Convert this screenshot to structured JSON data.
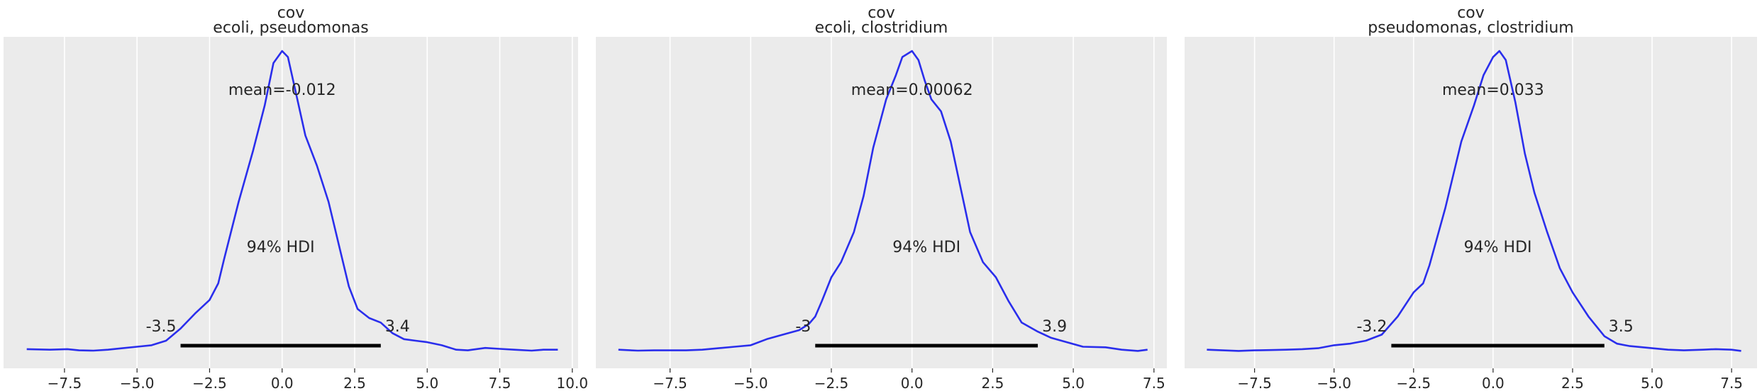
{
  "chart_data": [
    {
      "type": "kde",
      "title_line1": "cov",
      "title_line2": "ecoli, pseudomonas",
      "mean_label": "mean=-0.012",
      "hdi_label": "94% HDI",
      "hdi_low": -3.5,
      "hdi_high": 3.4,
      "hdi_low_label": "-3.5",
      "hdi_high_label": "3.4",
      "xlim": [
        -9.6,
        10.2
      ],
      "ylim": [
        0,
        1
      ],
      "xticks": [
        -7.5,
        -5.0,
        -2.5,
        0.0,
        2.5,
        5.0,
        7.5,
        10.0
      ],
      "xtick_labels": [
        "−7.5",
        "−5.0",
        "−2.5",
        "0.0",
        "2.5",
        "5.0",
        "7.5",
        "10.0"
      ],
      "curve": [
        [
          -8.8,
          0.012
        ],
        [
          -8,
          0.01
        ],
        [
          -7.4,
          0.012
        ],
        [
          -7,
          0.008
        ],
        [
          -6.5,
          0.007
        ],
        [
          -6,
          0.01
        ],
        [
          -5.5,
          0.015
        ],
        [
          -5,
          0.02
        ],
        [
          -4.5,
          0.025
        ],
        [
          -4,
          0.04
        ],
        [
          -3.5,
          0.08
        ],
        [
          -3,
          0.13
        ],
        [
          -2.5,
          0.175
        ],
        [
          -2.2,
          0.23
        ],
        [
          -2,
          0.31
        ],
        [
          -1.5,
          0.5
        ],
        [
          -1,
          0.67
        ],
        [
          -0.6,
          0.82
        ],
        [
          -0.3,
          0.96
        ],
        [
          0,
          1.0
        ],
        [
          0.2,
          0.98
        ],
        [
          0.5,
          0.85
        ],
        [
          0.8,
          0.72
        ],
        [
          1.2,
          0.62
        ],
        [
          1.6,
          0.5
        ],
        [
          2,
          0.34
        ],
        [
          2.3,
          0.22
        ],
        [
          2.6,
          0.145
        ],
        [
          3,
          0.115
        ],
        [
          3.4,
          0.1
        ],
        [
          3.8,
          0.065
        ],
        [
          4.2,
          0.045
        ],
        [
          4.6,
          0.04
        ],
        [
          5,
          0.035
        ],
        [
          5.5,
          0.025
        ],
        [
          6,
          0.01
        ],
        [
          6.4,
          0.008
        ],
        [
          7,
          0.016
        ],
        [
          7.5,
          0.013
        ],
        [
          8,
          0.01
        ],
        [
          8.6,
          0.007
        ],
        [
          9,
          0.01
        ],
        [
          9.5,
          0.01
        ]
      ]
    },
    {
      "type": "kde",
      "title_line1": "cov",
      "title_line2": "ecoli, clostridium",
      "mean_label": "mean=0.00062",
      "hdi_label": "94% HDI",
      "hdi_low": -3.0,
      "hdi_high": 3.9,
      "hdi_low_label": "-3",
      "hdi_high_label": "3.9",
      "xlim": [
        -9.8,
        7.9
      ],
      "ylim": [
        0,
        1
      ],
      "xticks": [
        -7.5,
        -5.0,
        -2.5,
        0.0,
        2.5,
        5.0,
        7.5
      ],
      "xtick_labels": [
        "−7.5",
        "−5.0",
        "−2.5",
        "0.0",
        "2.5",
        "5.0",
        "7.5"
      ],
      "curve": [
        [
          -9.1,
          0.01
        ],
        [
          -8.5,
          0.007
        ],
        [
          -8,
          0.008
        ],
        [
          -7.5,
          0.008
        ],
        [
          -7,
          0.008
        ],
        [
          -6.5,
          0.01
        ],
        [
          -6,
          0.015
        ],
        [
          -5.5,
          0.02
        ],
        [
          -5,
          0.025
        ],
        [
          -4.5,
          0.045
        ],
        [
          -4,
          0.06
        ],
        [
          -3.5,
          0.075
        ],
        [
          -3.2,
          0.095
        ],
        [
          -3,
          0.12
        ],
        [
          -2.8,
          0.17
        ],
        [
          -2.5,
          0.25
        ],
        [
          -2.2,
          0.3
        ],
        [
          -1.8,
          0.4
        ],
        [
          -1.5,
          0.52
        ],
        [
          -1.2,
          0.68
        ],
        [
          -0.8,
          0.84
        ],
        [
          -0.5,
          0.92
        ],
        [
          -0.3,
          0.98
        ],
        [
          0,
          1.0
        ],
        [
          0.2,
          0.97
        ],
        [
          0.4,
          0.9
        ],
        [
          0.6,
          0.84
        ],
        [
          0.9,
          0.8
        ],
        [
          1.2,
          0.7
        ],
        [
          1.5,
          0.55
        ],
        [
          1.8,
          0.4
        ],
        [
          2.2,
          0.3
        ],
        [
          2.6,
          0.25
        ],
        [
          3,
          0.17
        ],
        [
          3.4,
          0.1
        ],
        [
          3.9,
          0.07
        ],
        [
          4.3,
          0.05
        ],
        [
          4.8,
          0.035
        ],
        [
          5.3,
          0.02
        ],
        [
          6,
          0.018
        ],
        [
          6.5,
          0.01
        ],
        [
          7,
          0.006
        ],
        [
          7.3,
          0.01
        ]
      ]
    },
    {
      "type": "kde",
      "title_line1": "cov",
      "title_line2": "pseudomonas, clostridium",
      "mean_label": "mean=0.033",
      "hdi_label": "94% HDI",
      "hdi_low": -3.2,
      "hdi_high": 3.5,
      "hdi_low_label": "-3.2",
      "hdi_high_label": "3.5",
      "xlim": [
        -9.7,
        8.3
      ],
      "ylim": [
        0,
        1
      ],
      "xticks": [
        -7.5,
        -5.0,
        -2.5,
        0.0,
        2.5,
        5.0,
        7.5
      ],
      "xtick_labels": [
        "−7.5",
        "−5.0",
        "−2.5",
        "0.0",
        "2.5",
        "5.0",
        "7.5"
      ],
      "curve": [
        [
          -9,
          0.01
        ],
        [
          -8.5,
          0.008
        ],
        [
          -8,
          0.006
        ],
        [
          -7.5,
          0.008
        ],
        [
          -7,
          0.009
        ],
        [
          -6.5,
          0.01
        ],
        [
          -6,
          0.012
        ],
        [
          -5.5,
          0.015
        ],
        [
          -5,
          0.025
        ],
        [
          -4.5,
          0.03
        ],
        [
          -4,
          0.04
        ],
        [
          -3.5,
          0.06
        ],
        [
          -3,
          0.12
        ],
        [
          -2.5,
          0.2
        ],
        [
          -2.2,
          0.23
        ],
        [
          -2,
          0.29
        ],
        [
          -1.5,
          0.48
        ],
        [
          -1,
          0.7
        ],
        [
          -0.6,
          0.82
        ],
        [
          -0.3,
          0.92
        ],
        [
          0,
          0.98
        ],
        [
          0.2,
          1.0
        ],
        [
          0.4,
          0.97
        ],
        [
          0.7,
          0.83
        ],
        [
          1,
          0.66
        ],
        [
          1.3,
          0.53
        ],
        [
          1.7,
          0.4
        ],
        [
          2.1,
          0.28
        ],
        [
          2.5,
          0.2
        ],
        [
          3,
          0.12
        ],
        [
          3.5,
          0.055
        ],
        [
          3.9,
          0.03
        ],
        [
          4.3,
          0.022
        ],
        [
          5,
          0.015
        ],
        [
          5.5,
          0.01
        ],
        [
          6,
          0.008
        ],
        [
          6.6,
          0.01
        ],
        [
          7,
          0.012
        ],
        [
          7.5,
          0.01
        ],
        [
          7.8,
          0.006
        ]
      ]
    }
  ]
}
